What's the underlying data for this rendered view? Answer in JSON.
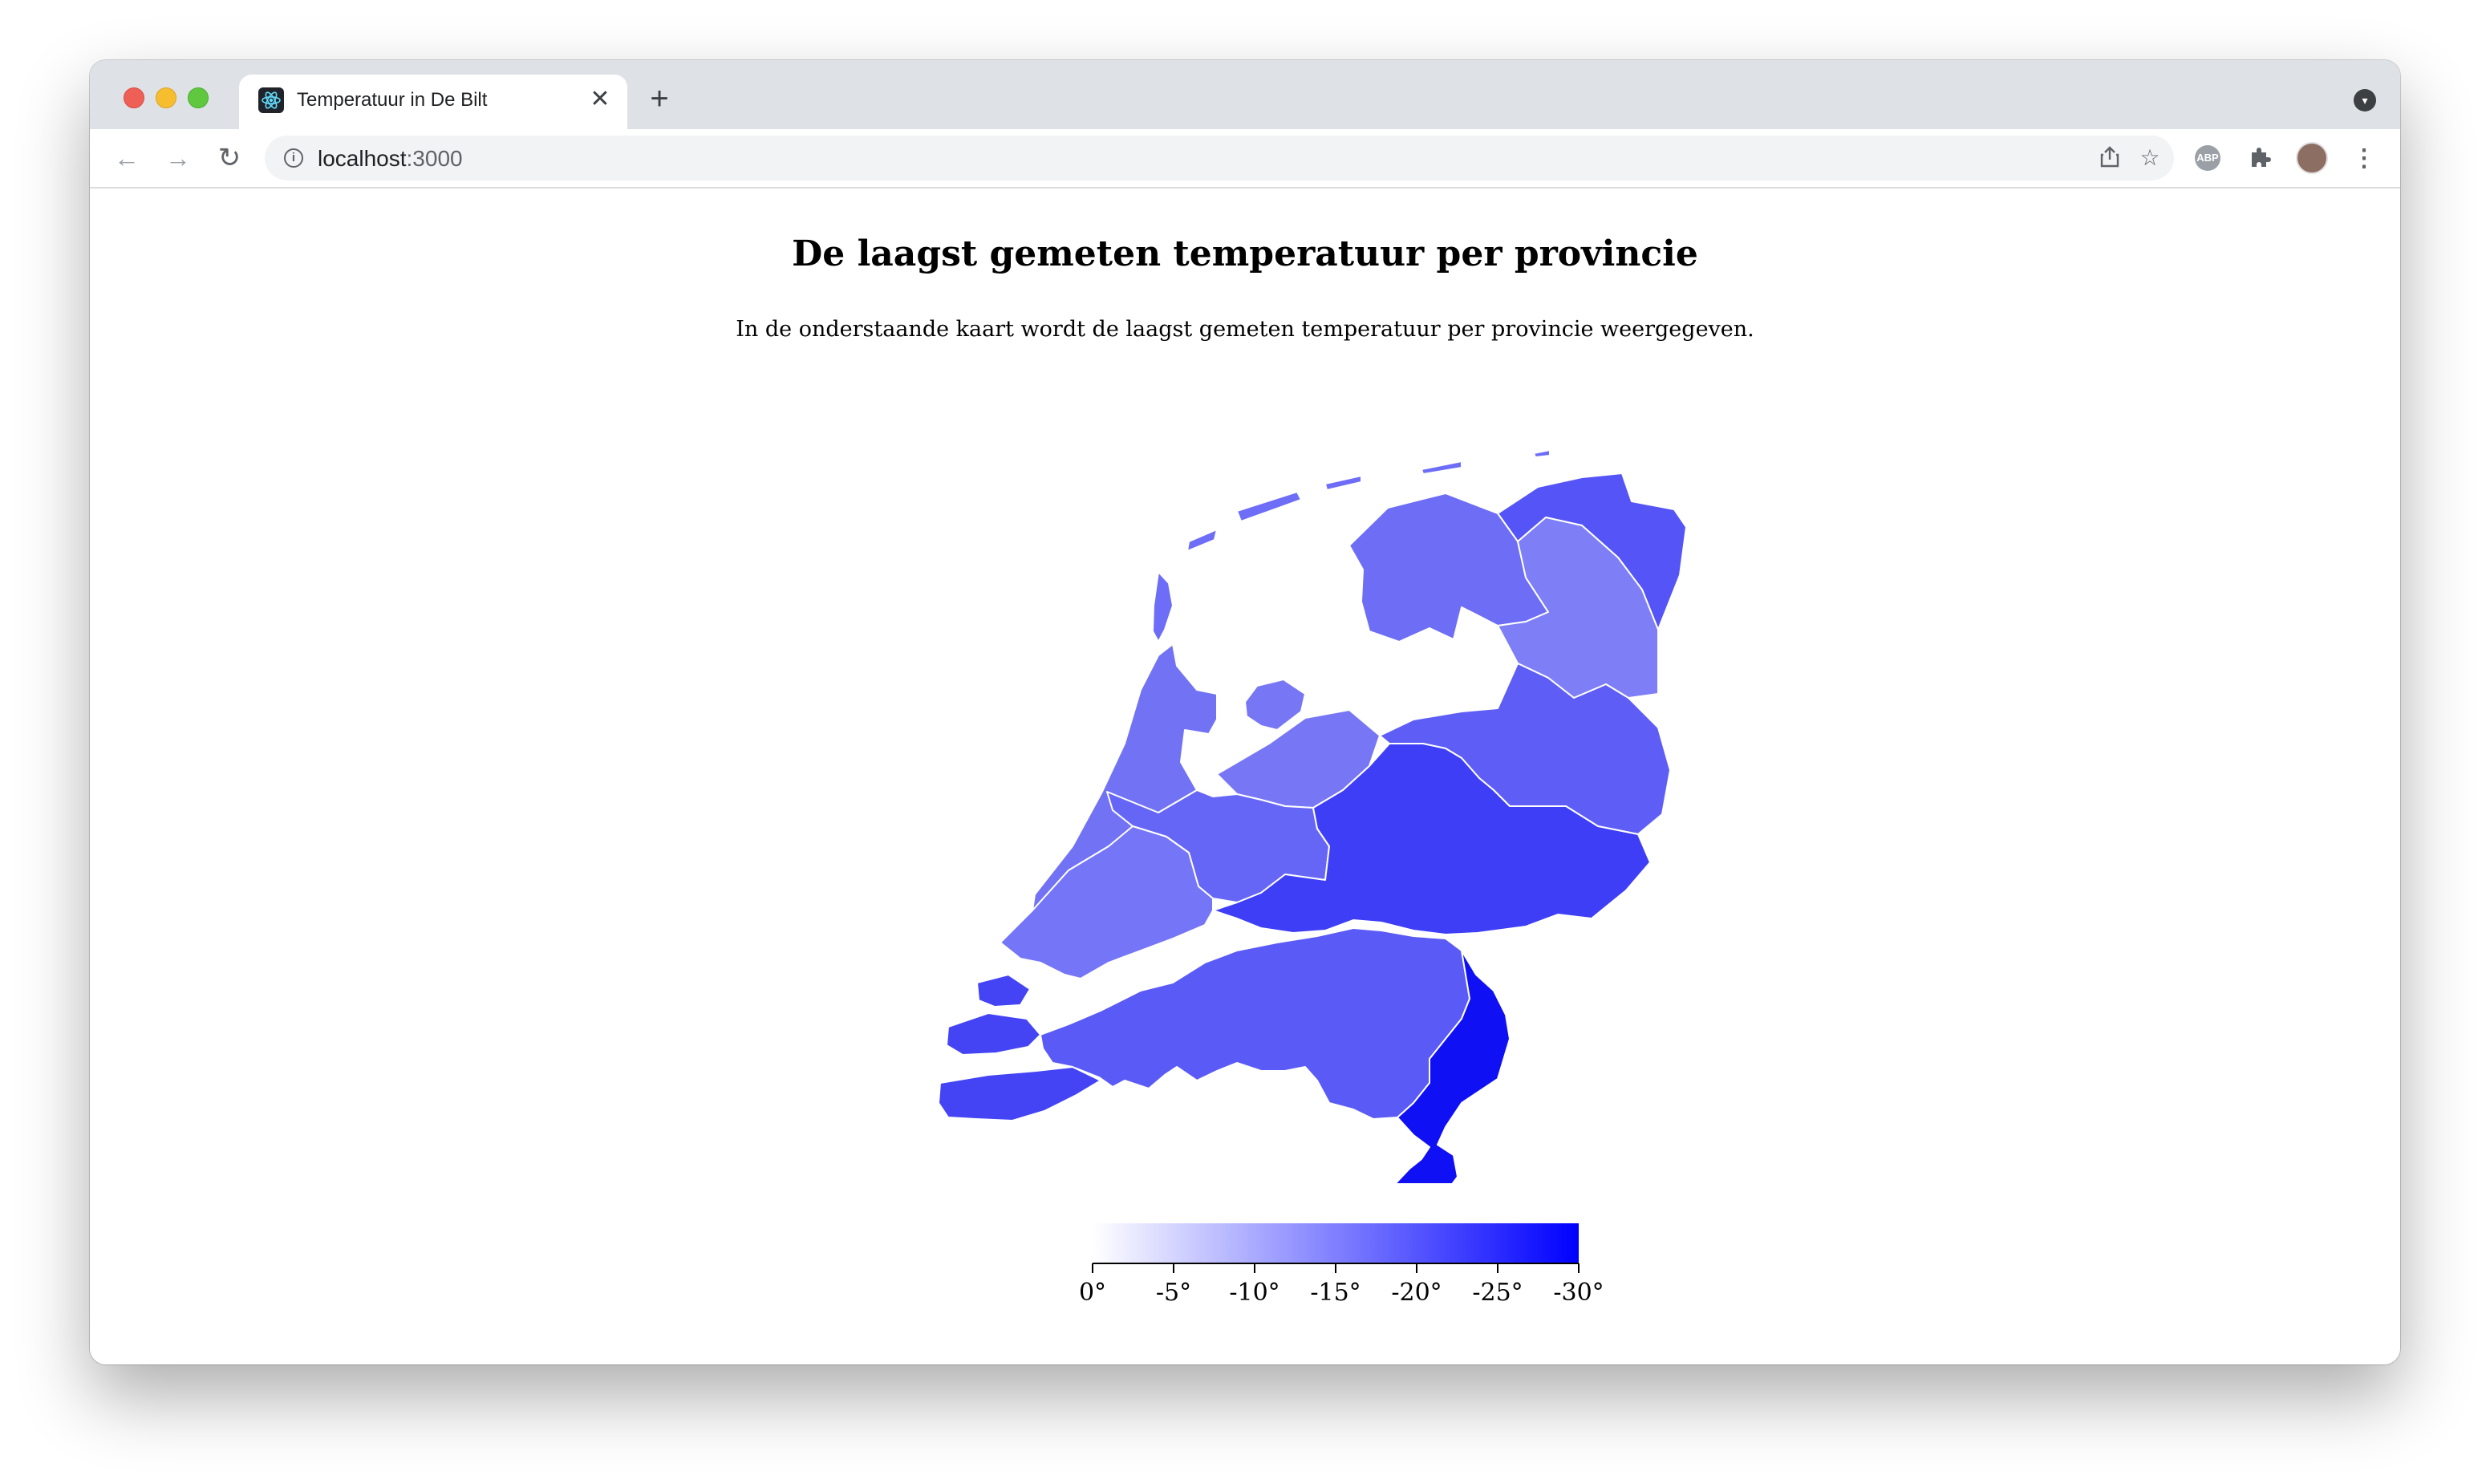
{
  "browser": {
    "tab_title": "Temperatuur in De Bilt",
    "url_host": "localhost",
    "url_port": ":3000"
  },
  "page": {
    "title": "De laagst gemeten temperatuur per provincie",
    "intro": "In de onderstaande kaart wordt de laagst gemeten temperatuur per provincie weergegeven."
  },
  "colors": {
    "scale_start": "#ffffff",
    "scale_end": "#0000ff",
    "region_border": "#ffffff"
  },
  "legend": {
    "ticks": [
      "0°",
      "-5°",
      "-10°",
      "-15°",
      "-20°",
      "-25°",
      "-30°"
    ]
  },
  "icons": {
    "back": "arrow-left-icon",
    "forward": "arrow-right-icon",
    "reload": "reload-icon",
    "info": "info-icon",
    "share": "share-icon",
    "bookmark": "star-icon",
    "adblock": "abp-icon",
    "extensions": "puzzle-icon",
    "profile": "avatar",
    "menu": "kebab-menu-icon"
  }
}
